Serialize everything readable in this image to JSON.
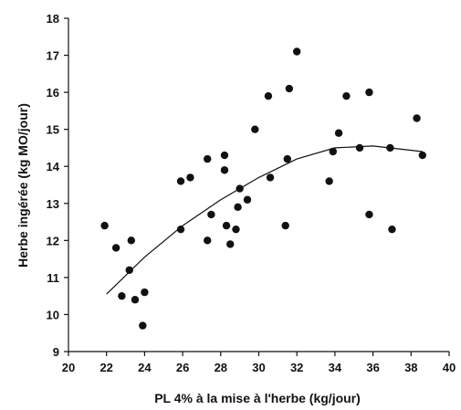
{
  "chart_data": {
    "type": "scatter",
    "xlabel": "PL 4% à la mise à l'herbe (kg/jour)",
    "ylabel": "Herbe ingérée (kg MO/jour)",
    "xlim": [
      20,
      40
    ],
    "ylim": [
      9,
      18
    ],
    "xticks": [
      20,
      22,
      24,
      26,
      28,
      30,
      32,
      34,
      36,
      38,
      40
    ],
    "yticks": [
      9,
      10,
      11,
      12,
      13,
      14,
      15,
      16,
      17,
      18
    ],
    "grid": false,
    "points": [
      {
        "x": 21.9,
        "y": 12.4
      },
      {
        "x": 22.5,
        "y": 11.8
      },
      {
        "x": 22.8,
        "y": 10.5
      },
      {
        "x": 23.2,
        "y": 11.2
      },
      {
        "x": 23.3,
        "y": 12.0
      },
      {
        "x": 23.5,
        "y": 10.4
      },
      {
        "x": 24.0,
        "y": 10.6
      },
      {
        "x": 23.9,
        "y": 9.7
      },
      {
        "x": 25.9,
        "y": 13.6
      },
      {
        "x": 25.9,
        "y": 12.3
      },
      {
        "x": 26.4,
        "y": 13.7
      },
      {
        "x": 27.3,
        "y": 14.2
      },
      {
        "x": 27.3,
        "y": 12.0
      },
      {
        "x": 27.5,
        "y": 12.7
      },
      {
        "x": 28.2,
        "y": 14.3
      },
      {
        "x": 28.2,
        "y": 13.9
      },
      {
        "x": 28.3,
        "y": 12.4
      },
      {
        "x": 28.5,
        "y": 11.9
      },
      {
        "x": 28.8,
        "y": 12.3
      },
      {
        "x": 28.9,
        "y": 12.9
      },
      {
        "x": 29.0,
        "y": 13.4
      },
      {
        "x": 29.4,
        "y": 13.1
      },
      {
        "x": 29.8,
        "y": 15.0
      },
      {
        "x": 30.5,
        "y": 15.9
      },
      {
        "x": 30.6,
        "y": 13.7
      },
      {
        "x": 31.4,
        "y": 12.4
      },
      {
        "x": 31.5,
        "y": 14.2
      },
      {
        "x": 31.6,
        "y": 16.1
      },
      {
        "x": 32.0,
        "y": 17.1
      },
      {
        "x": 33.7,
        "y": 13.6
      },
      {
        "x": 33.9,
        "y": 14.4
      },
      {
        "x": 34.2,
        "y": 14.9
      },
      {
        "x": 34.6,
        "y": 15.9
      },
      {
        "x": 35.3,
        "y": 14.5
      },
      {
        "x": 35.8,
        "y": 16.0
      },
      {
        "x": 35.8,
        "y": 12.7
      },
      {
        "x": 36.9,
        "y": 14.5
      },
      {
        "x": 37.0,
        "y": 12.3
      },
      {
        "x": 38.3,
        "y": 15.3
      },
      {
        "x": 38.6,
        "y": 14.3
      }
    ],
    "fit_curve": {
      "type": "quadratic",
      "points": [
        {
          "x": 22.0,
          "y": 10.55
        },
        {
          "x": 24.0,
          "y": 11.55
        },
        {
          "x": 26.0,
          "y": 12.4
        },
        {
          "x": 28.0,
          "y": 13.1
        },
        {
          "x": 30.0,
          "y": 13.7
        },
        {
          "x": 32.0,
          "y": 14.2
        },
        {
          "x": 34.0,
          "y": 14.5
        },
        {
          "x": 36.0,
          "y": 14.55
        },
        {
          "x": 38.6,
          "y": 14.4
        }
      ]
    }
  }
}
